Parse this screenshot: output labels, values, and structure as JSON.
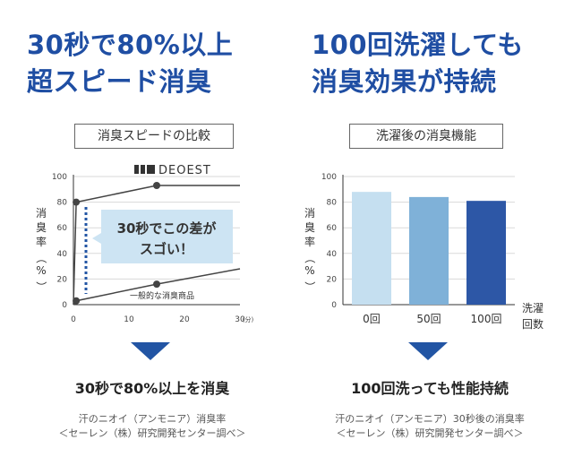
{
  "left": {
    "headline_1": "30秒で80%以上",
    "headline_2": "超スピード消臭",
    "subtitle": "消臭スピードの比較",
    "summary": "30秒で80%以上を消臭",
    "source_1": "汗のニオイ（アンモニア）消臭率",
    "source_2": "＜セーレン（株）研究開発センター調べ＞",
    "callout_1": "30秒でこの差が",
    "callout_2": "スゴい！",
    "brand_label": "DEOEST",
    "other_label": "一般的な消臭商品"
  },
  "right": {
    "headline_1": "100回洗濯しても",
    "headline_2": "消臭効果が持続",
    "subtitle": "洗濯後の消臭機能",
    "summary": "100回洗っても性能持続",
    "source_1": "汗のニオイ（アンモニア）30秒後の消臭率",
    "source_2": "＜セーレン（株）研究開発センター調べ＞"
  },
  "chart_data": [
    {
      "type": "line",
      "ylabel": "消臭率（%）",
      "xunit": "(分)",
      "xlim": [
        0,
        30
      ],
      "ylim": [
        0,
        100
      ],
      "xticks": [
        0,
        10,
        20,
        30
      ],
      "yticks": [
        0,
        20,
        40,
        60,
        80,
        100
      ],
      "series": [
        {
          "name": "DEOEST",
          "x": [
            0,
            0.5,
            15,
            30
          ],
          "y": [
            0,
            80,
            93,
            93
          ],
          "color": "#444444"
        },
        {
          "name": "一般的な消臭商品",
          "x": [
            0,
            0.5,
            15,
            30
          ],
          "y": [
            0,
            3,
            16,
            28
          ],
          "color": "#444444"
        }
      ],
      "points": [
        {
          "series": 0,
          "x": 0.5,
          "y": 80
        },
        {
          "series": 0,
          "x": 15,
          "y": 93
        },
        {
          "series": 1,
          "x": 0.5,
          "y": 3
        },
        {
          "series": 1,
          "x": 15,
          "y": 16
        }
      ]
    },
    {
      "type": "bar",
      "ylabel": "消臭率（%）",
      "xlabel": "洗濯回数",
      "categories": [
        "0回",
        "50回",
        "100回"
      ],
      "values": [
        88,
        84,
        81
      ],
      "colors": [
        "#c5dff0",
        "#7fb1d8",
        "#2d57a6"
      ],
      "ylim": [
        0,
        100
      ],
      "yticks": [
        0,
        20,
        40,
        60,
        80,
        100
      ]
    }
  ]
}
